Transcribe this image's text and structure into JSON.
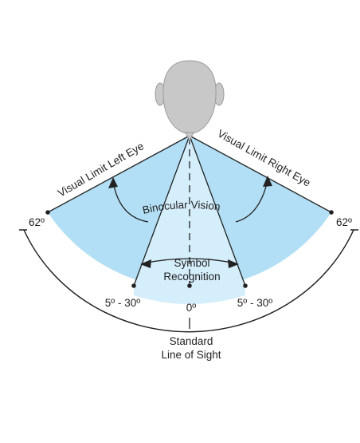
{
  "labels": {
    "left_limit": "Visual Limit Left Eye",
    "right_limit": "Visual Limit Right Eye",
    "binocular": "Binocular Vision",
    "symbol_line1": "Symbol",
    "symbol_line2": "Recognition",
    "left_angle": "62º",
    "right_angle": "62º",
    "left_symbol_range": "5º - 30º",
    "right_symbol_range": "5º - 30º",
    "center_angle": "0º",
    "sight_line1": "Standard",
    "sight_line2": "Line of Sight"
  },
  "colors": {
    "binocular_field": "#b2dff5",
    "symbol_field": "#d5eefb",
    "head": "#c8c8c8",
    "line": "#222222"
  }
}
